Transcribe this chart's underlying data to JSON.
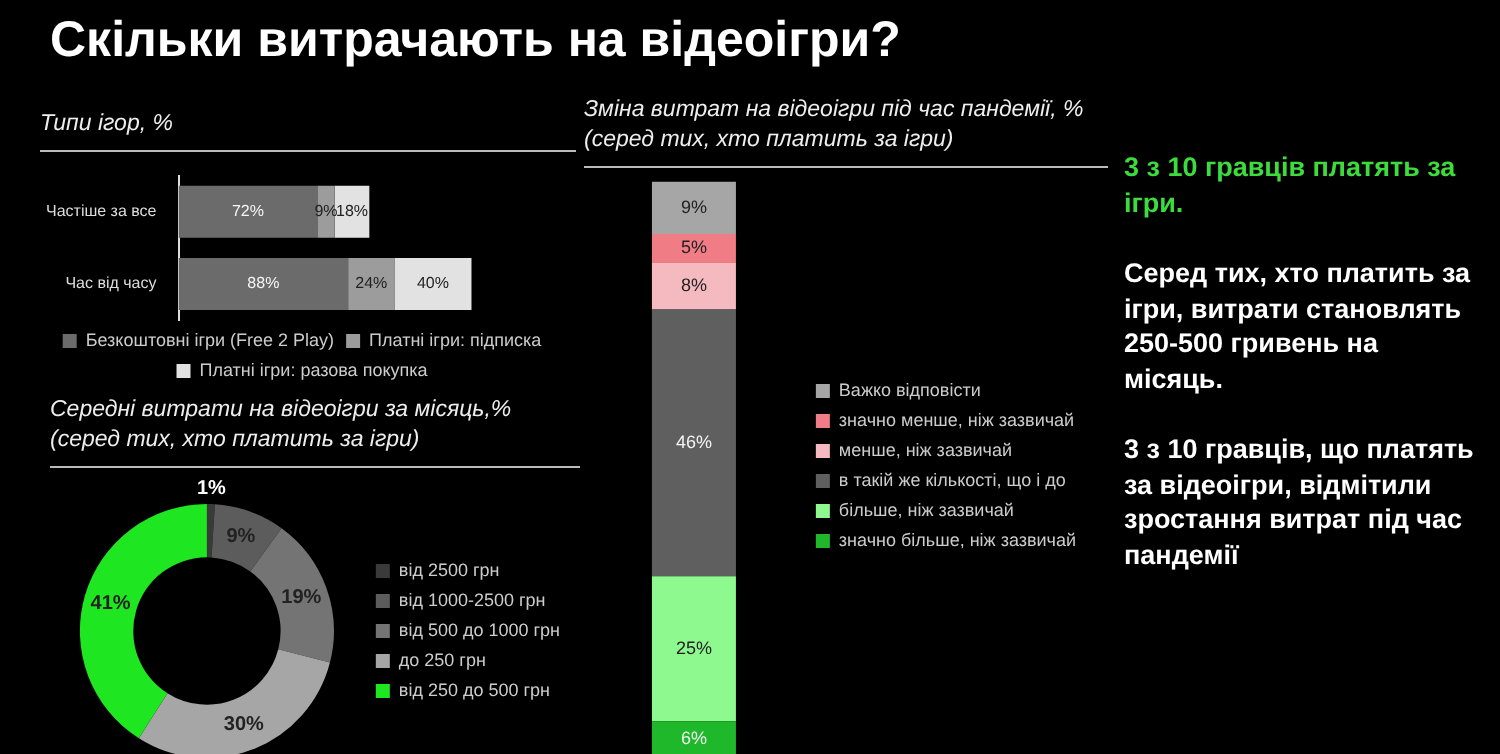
{
  "chart_data": [
    {
      "type": "other",
      "title": "Скільки витрачають на відеоігри?"
    },
    {
      "type": "bar",
      "title": "Типи ігор, %",
      "orientation": "horizontal",
      "stacked": true,
      "categories": [
        "Частіше за все",
        "Час від часу"
      ],
      "tick_labels": "y",
      "legend": "bottom",
      "series": [
        {
          "name": "Безкоштовні ігри (Free 2 Play)",
          "color": "#6b6b6b",
          "values": [
            72,
            88
          ],
          "value_labels": [
            "72%",
            "88%"
          ]
        },
        {
          "name": "Платні ігри: підписка",
          "color": "#9c9c9c",
          "values": [
            9,
            24
          ],
          "value_labels": [
            "9%",
            "24%"
          ]
        },
        {
          "name": "Платні ігри: разова покупка",
          "color": "#e2e2e2",
          "values": [
            18,
            40
          ],
          "value_labels": [
            "18%",
            "40%"
          ]
        }
      ]
    },
    {
      "type": "donut",
      "title": "Середні витрати на відеоігри за місяць,% (серед тих, хто платить за ігри)",
      "legend": "right",
      "categories": [
        "від 2500 грн",
        "від 1000-2500 грн",
        "від 500 до 1000 грн",
        "до 250 грн",
        "від 250 до 500 грн"
      ],
      "values": [
        1,
        9,
        19,
        30,
        41
      ],
      "colors": [
        "#3a3a3a",
        "#5c5c5c",
        "#747474",
        "#a6a6a6",
        "#1ee620"
      ],
      "value_labels": [
        "1%",
        "9%",
        "19%",
        "30%",
        "41%"
      ]
    },
    {
      "type": "bar",
      "title": "Зміна витрат на відеоігри під час пандемії, % (серед тих, хто платить за ігри)",
      "stacked": true,
      "categories": [
        null
      ],
      "tick_labels": false,
      "legend": "right",
      "series": [
        {
          "name": "значно більше, ніж зазвичай",
          "color": "#1fb82a",
          "values": [
            6
          ],
          "value_labels": [
            "6%"
          ]
        },
        {
          "name": "більше, ніж зазвичай",
          "color": "#8ef98e",
          "values": [
            25
          ],
          "value_labels": [
            "25%"
          ]
        },
        {
          "name": "в такій же кількості, що і до",
          "color": "#5f5f5f",
          "values": [
            46
          ],
          "value_labels": [
            "46%"
          ]
        },
        {
          "name": "менше, ніж зазвичай",
          "color": "#f5b9c0",
          "values": [
            8
          ],
          "value_labels": [
            "8%"
          ]
        },
        {
          "name": "значно менше, ніж зазвичай",
          "color": "#f07c86",
          "values": [
            5
          ],
          "value_labels": [
            "5%"
          ]
        },
        {
          "name": "Важко відповісти",
          "color": "#a6a6a6",
          "values": [
            9
          ],
          "value_labels": [
            "9%"
          ]
        }
      ]
    },
    {
      "type": "other",
      "annotations": [
        "3 з 10 гравців платять за ігри.",
        "Серед тих, хто платить за ігри, витрати становлять 250-500 гривень на місяць.",
        "3 з 10 гравців, що платять за відеоігри, відмітили зростання витрат під час пандемії"
      ]
    }
  ]
}
